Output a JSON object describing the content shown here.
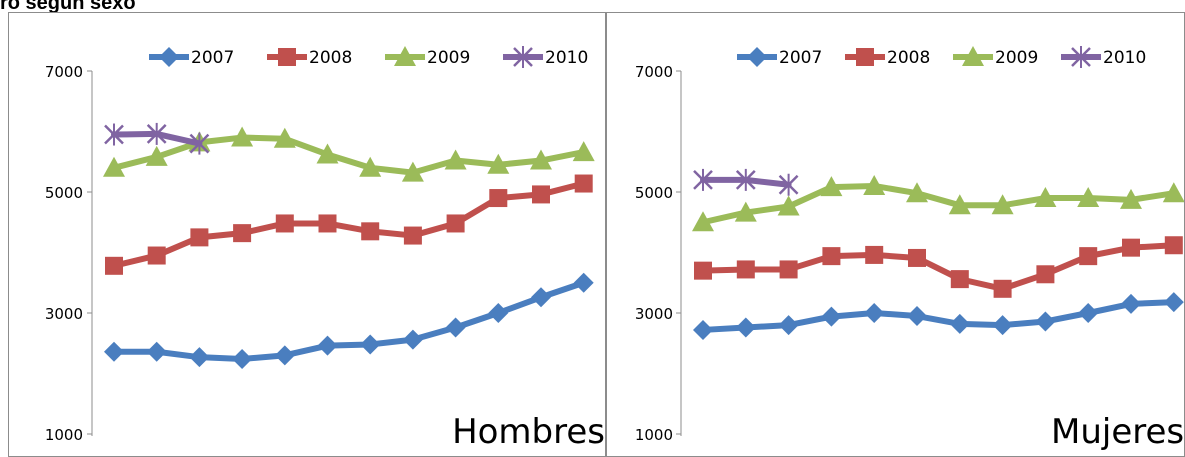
{
  "page_title": "ro según sexo",
  "chart_data": [
    {
      "type": "line",
      "panel_label": "Hombres",
      "y_ticks": [
        "7000",
        "5000",
        "3000",
        "1000"
      ],
      "ylim": [
        1000,
        7000
      ],
      "legend_position": "top",
      "grid": false,
      "series": [
        {
          "name": "2007",
          "color": "#4a7ebf",
          "marker": "diamond",
          "values": [
            2360,
            2360,
            2270,
            2240,
            2300,
            2460,
            2480,
            2560,
            2760,
            3000,
            3260,
            3500
          ]
        },
        {
          "name": "2008",
          "color": "#c0504d",
          "marker": "square",
          "values": [
            3780,
            3950,
            4250,
            4320,
            4480,
            4480,
            4350,
            4280,
            4480,
            4900,
            4960,
            5140
          ]
        },
        {
          "name": "2009",
          "color": "#9bbb59",
          "marker": "triangle",
          "values": [
            5400,
            5580,
            5820,
            5900,
            5880,
            5620,
            5400,
            5320,
            5520,
            5450,
            5520,
            5660
          ]
        },
        {
          "name": "2010",
          "color": "#8064a2",
          "marker": "x",
          "values": [
            5950,
            5960,
            5800
          ]
        }
      ]
    },
    {
      "type": "line",
      "panel_label": "Mujeres",
      "y_ticks": [
        "7000",
        "5000",
        "3000",
        "1000"
      ],
      "ylim": [
        1000,
        7000
      ],
      "legend_position": "top",
      "grid": false,
      "series": [
        {
          "name": "2007",
          "color": "#4a7ebf",
          "marker": "diamond",
          "values": [
            2720,
            2760,
            2800,
            2940,
            3000,
            2950,
            2820,
            2800,
            2860,
            3000,
            3150,
            3180
          ]
        },
        {
          "name": "2008",
          "color": "#c0504d",
          "marker": "square",
          "values": [
            3700,
            3720,
            3720,
            3940,
            3960,
            3910,
            3560,
            3400,
            3640,
            3940,
            4080,
            4120
          ]
        },
        {
          "name": "2009",
          "color": "#9bbb59",
          "marker": "triangle",
          "values": [
            4500,
            4660,
            4760,
            5080,
            5100,
            4980,
            4780,
            4780,
            4900,
            4900,
            4870,
            4980
          ]
        },
        {
          "name": "2010",
          "color": "#8064a2",
          "marker": "x",
          "values": [
            5200,
            5200,
            5120
          ]
        }
      ]
    }
  ]
}
